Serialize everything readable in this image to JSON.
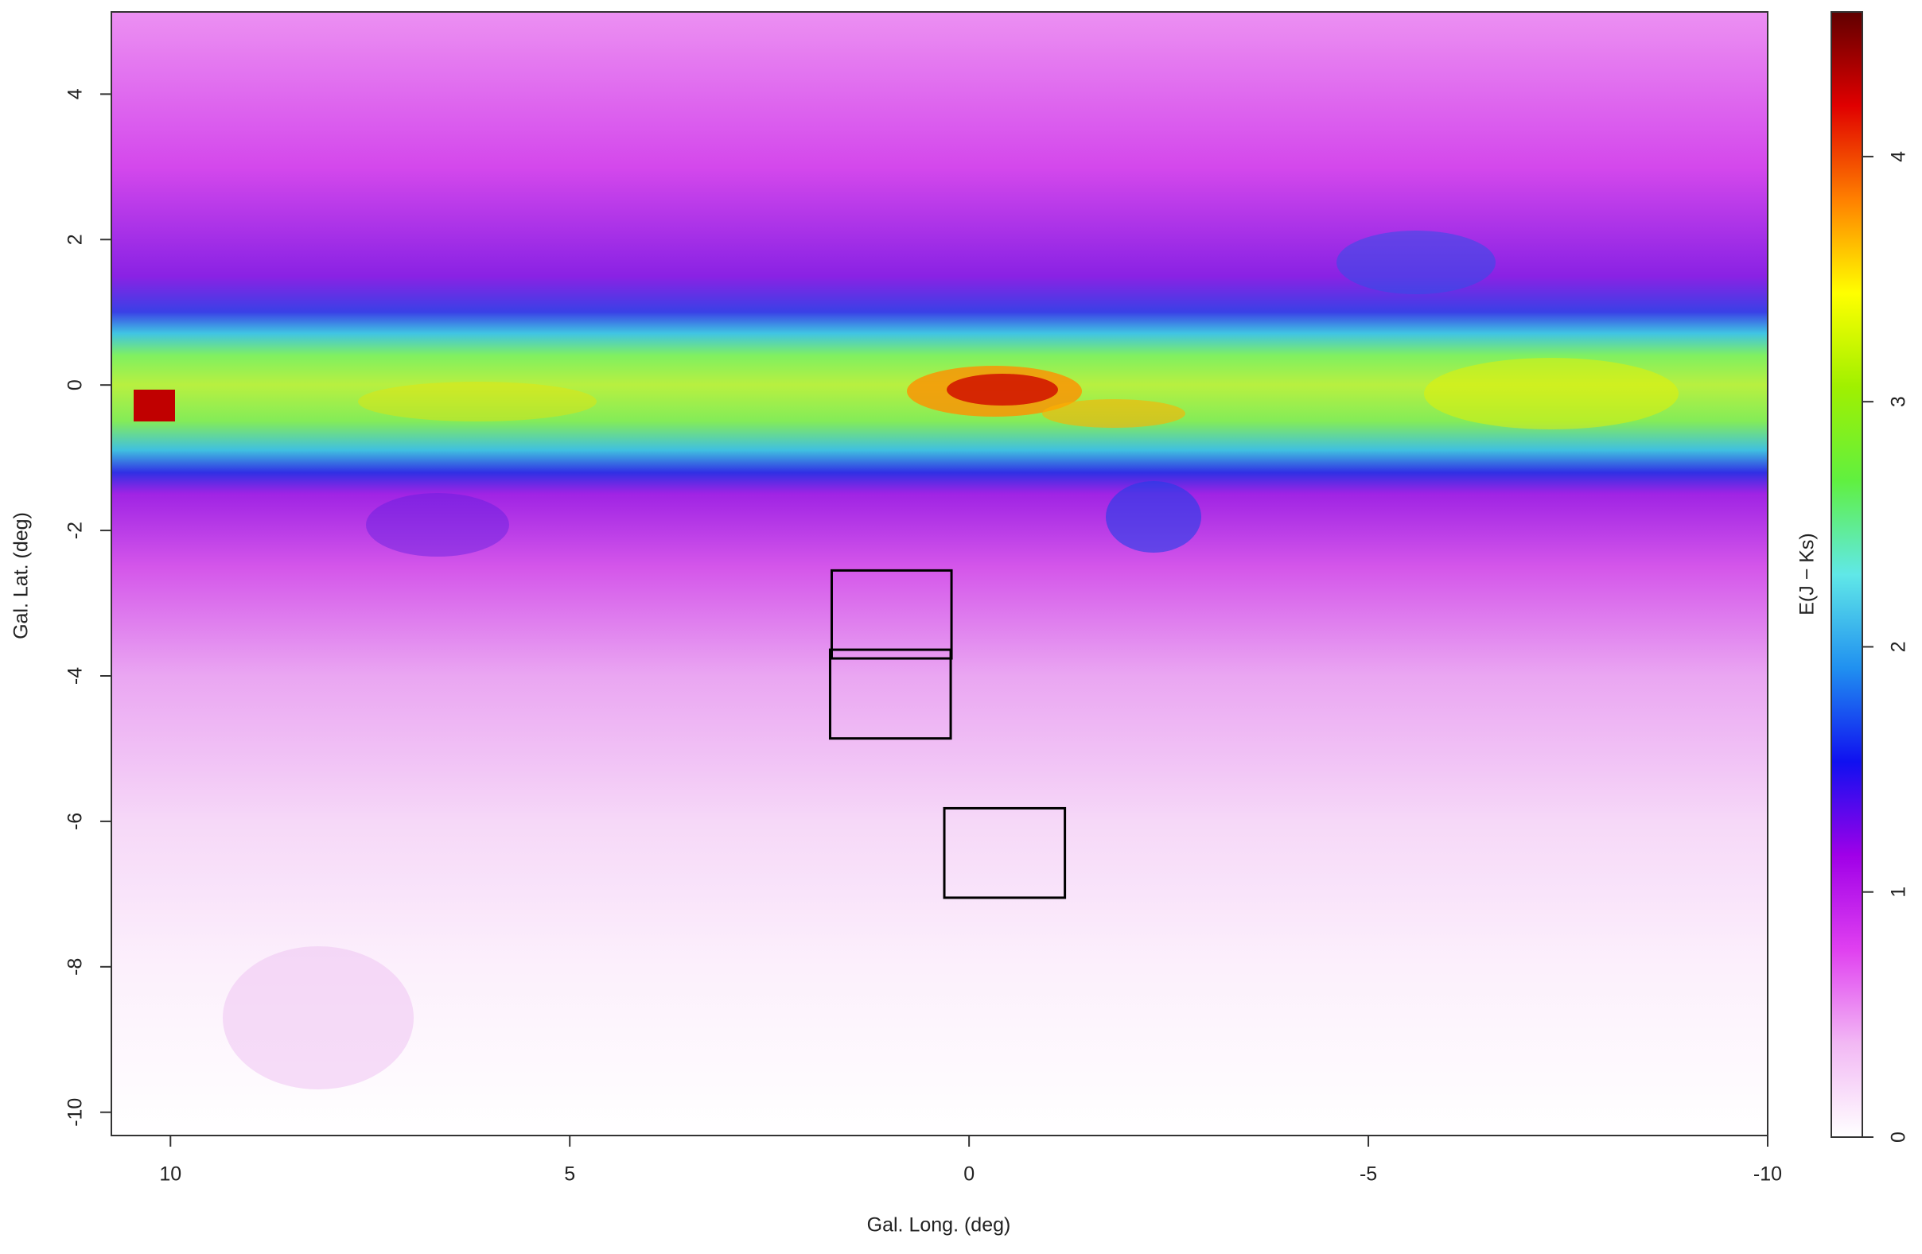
{
  "chart_data": {
    "type": "map",
    "x_label": "Gal. Long. (deg)",
    "y_label": "Gal. Lat. (deg)",
    "xlim": [
      10.74,
      -10
    ],
    "ylim": [
      -10.32,
      5.13
    ],
    "xticks": [
      10,
      5,
      0,
      -5,
      -10
    ],
    "yticks": [
      -10,
      -8,
      -6,
      -4,
      -2,
      0,
      2,
      4
    ],
    "regions": [
      {
        "l": [
          1.72,
          0.22
        ],
        "b": [
          -2.55,
          -3.76
        ]
      },
      {
        "l": [
          1.74,
          0.23
        ],
        "b": [
          -3.64,
          -4.86
        ]
      },
      {
        "l": [
          0.31,
          -1.2
        ],
        "b": [
          -5.82,
          -7.05
        ]
      }
    ],
    "colorbar": {
      "label": "E(J − Ks)",
      "lim": [
        0,
        4.59
      ],
      "ticks": [
        0,
        1,
        2,
        3,
        4
      ],
      "colormap": [
        "#ffffff",
        "#f2b8f4",
        "#e040f0",
        "#a000e8",
        "#1010f0",
        "#2090f0",
        "#60e8e8",
        "#60f040",
        "#a0f000",
        "#ffff00",
        "#ff8000",
        "#e00000",
        "#600000"
      ]
    }
  }
}
